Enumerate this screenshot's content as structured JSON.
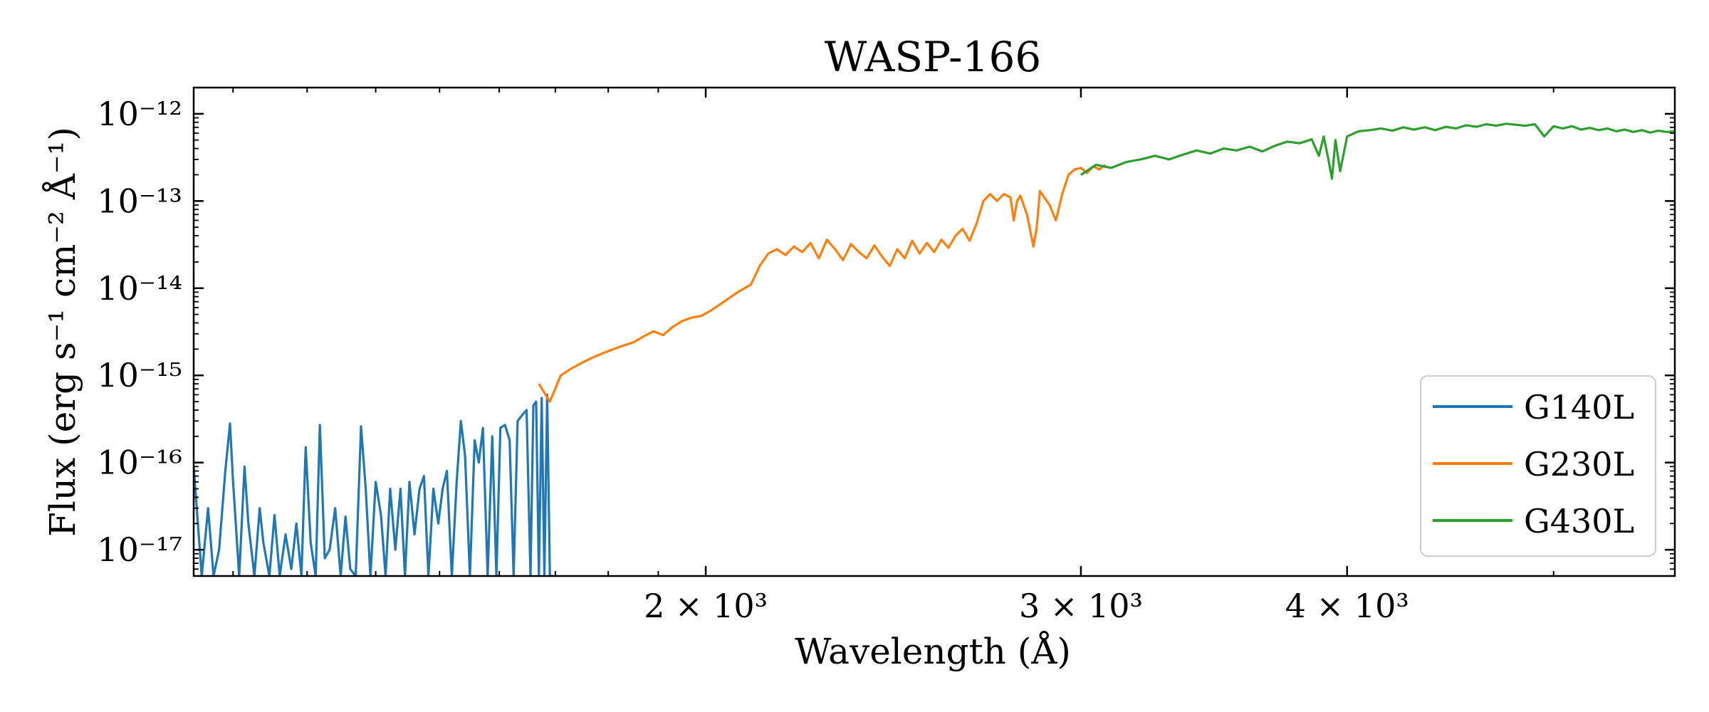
{
  "chart_data": {
    "type": "line",
    "title": "WASP-166",
    "xlabel": "Wavelength (Å)",
    "ylabel": "Flux (erg s⁻¹ cm⁻² Å⁻¹)",
    "xscale": "log",
    "yscale": "log",
    "xlim": [
      1150,
      5700
    ],
    "ylim": [
      5e-18,
      2e-12
    ],
    "grid": false,
    "legend_position": "lower-right",
    "x_ticks": [
      {
        "value": 2000,
        "label": "2 × 10³"
      },
      {
        "value": 3000,
        "label": "3 × 10³"
      },
      {
        "value": 4000,
        "label": "4 × 10³"
      }
    ],
    "y_ticks": [
      {
        "value": 1e-17,
        "label": "10⁻¹⁷"
      },
      {
        "value": 1e-16,
        "label": "10⁻¹⁶"
      },
      {
        "value": 1e-15,
        "label": "10⁻¹⁵"
      },
      {
        "value": 1e-14,
        "label": "10⁻¹⁴"
      },
      {
        "value": 1e-13,
        "label": "10⁻¹³"
      },
      {
        "value": 1e-12,
        "label": "10⁻¹²"
      }
    ],
    "series": [
      {
        "name": "G140L",
        "color": "#1f77b4",
        "x": [
          1150,
          1160,
          1168,
          1175,
          1182,
          1190,
          1196,
          1200,
          1208,
          1215,
          1220,
          1228,
          1235,
          1240,
          1248,
          1255,
          1262,
          1270,
          1278,
          1285,
          1292,
          1298,
          1305,
          1312,
          1318,
          1325,
          1332,
          1340,
          1348,
          1355,
          1362,
          1370,
          1378,
          1385,
          1392,
          1400,
          1408,
          1415,
          1422,
          1430,
          1438,
          1445,
          1452,
          1460,
          1468,
          1475,
          1482,
          1490,
          1498,
          1505,
          1512,
          1520,
          1528,
          1535,
          1542,
          1550,
          1558,
          1565,
          1572,
          1580,
          1588,
          1595,
          1602,
          1610,
          1618,
          1625,
          1632,
          1640,
          1648,
          1655,
          1660,
          1665,
          1670,
          1675,
          1680,
          1685,
          1690,
          1695
        ],
        "y": [
          9e-17,
          4e-18,
          3e-17,
          4e-18,
          1e-17,
          8e-17,
          2.8e-16,
          6e-17,
          4e-18,
          9e-17,
          2e-17,
          4e-18,
          3e-17,
          1.2e-17,
          4e-18,
          2.5e-17,
          4e-18,
          1.5e-17,
          6e-18,
          2e-17,
          4e-18,
          1.5e-16,
          1.2e-17,
          4e-18,
          2.7e-16,
          8e-18,
          1e-17,
          3e-17,
          4e-18,
          2.4e-17,
          6e-18,
          4e-18,
          2.6e-16,
          5e-17,
          4e-18,
          6e-17,
          2.5e-17,
          4e-18,
          5e-17,
          1e-17,
          5e-17,
          4e-18,
          6e-17,
          1.5e-17,
          5e-17,
          7e-17,
          4e-18,
          5e-17,
          2e-17,
          5e-17,
          8e-17,
          4e-18,
          6e-17,
          3e-16,
          1.2e-16,
          4e-18,
          1.8e-16,
          1e-16,
          2.5e-16,
          4e-18,
          2e-16,
          4e-18,
          2.5e-16,
          2.7e-16,
          1.8e-16,
          4e-18,
          3e-16,
          3.5e-16,
          4e-16,
          4e-18,
          4.5e-16,
          5e-16,
          4e-18,
          5.5e-16,
          4e-18,
          6e-16,
          4e-18,
          4e-18
        ]
      },
      {
        "name": "G230L",
        "color": "#ff7f0e",
        "x": [
          1670,
          1690,
          1710,
          1730,
          1750,
          1770,
          1790,
          1810,
          1830,
          1850,
          1870,
          1890,
          1910,
          1930,
          1950,
          1970,
          1990,
          2010,
          2040,
          2070,
          2100,
          2120,
          2140,
          2160,
          2180,
          2200,
          2220,
          2240,
          2260,
          2280,
          2300,
          2320,
          2340,
          2360,
          2380,
          2400,
          2420,
          2440,
          2460,
          2480,
          2500,
          2520,
          2540,
          2560,
          2580,
          2600,
          2620,
          2640,
          2660,
          2680,
          2700,
          2720,
          2740,
          2760,
          2780,
          2790,
          2800,
          2810,
          2830,
          2850,
          2860,
          2870,
          2880,
          2900,
          2920,
          2940,
          2960,
          2980,
          3000,
          3020,
          3040,
          3060,
          3080
        ],
        "y": [
          8e-16,
          5e-16,
          1e-15,
          1.2e-15,
          1.4e-15,
          1.6e-15,
          1.8e-15,
          2e-15,
          2.2e-15,
          2.4e-15,
          2.8e-15,
          3.2e-15,
          2.9e-15,
          3.6e-15,
          4.2e-15,
          4.6e-15,
          4.8e-15,
          5.5e-15,
          7e-15,
          9e-15,
          1.1e-14,
          1.8e-14,
          2.5e-14,
          2.8e-14,
          2.4e-14,
          3e-14,
          2.6e-14,
          3.3e-14,
          2.2e-14,
          3.6e-14,
          2.8e-14,
          2.1e-14,
          3.2e-14,
          2.6e-14,
          2.2e-14,
          3.1e-14,
          2.3e-14,
          1.8e-14,
          2.8e-14,
          2.2e-14,
          3.5e-14,
          2.5e-14,
          3.3e-14,
          2.6e-14,
          3.6e-14,
          2.9e-14,
          4e-14,
          4.8e-14,
          3.5e-14,
          5.5e-14,
          1e-13,
          1.2e-13,
          1e-13,
          1.2e-13,
          1.1e-13,
          6e-14,
          1e-13,
          1.15e-13,
          7e-14,
          3e-14,
          5e-14,
          1.3e-13,
          1.15e-13,
          9e-14,
          6e-14,
          1.2e-13,
          2e-13,
          2.3e-13,
          2.4e-13,
          2.1e-13,
          2.5e-13,
          2.3e-13,
          2.6e-13
        ],
        "__ranges": "dummy"
      },
      {
        "name": "G430L",
        "color": "#2ca02c",
        "x": [
          3000,
          3050,
          3100,
          3150,
          3200,
          3250,
          3300,
          3350,
          3400,
          3450,
          3500,
          3550,
          3600,
          3650,
          3700,
          3750,
          3800,
          3850,
          3880,
          3900,
          3920,
          3935,
          3950,
          3970,
          4000,
          4050,
          4100,
          4150,
          4200,
          4250,
          4300,
          4350,
          4400,
          4450,
          4500,
          4550,
          4600,
          4650,
          4700,
          4750,
          4800,
          4850,
          4900,
          4950,
          5000,
          5050,
          5100,
          5150,
          5200,
          5250,
          5300,
          5350,
          5400,
          5450,
          5500,
          5550,
          5600,
          5650,
          5700
        ],
        "y": [
          2e-13,
          2.6e-13,
          2.4e-13,
          2.8e-13,
          3e-13,
          3.3e-13,
          3e-13,
          3.4e-13,
          3.8e-13,
          3.5e-13,
          4e-13,
          3.8e-13,
          4.2e-13,
          3.7e-13,
          4.3e-13,
          4.8e-13,
          4.6e-13,
          5.1e-13,
          3.3e-13,
          5.5e-13,
          3e-13,
          1.8e-13,
          5e-13,
          2.2e-13,
          5.5e-13,
          6.3e-13,
          6.5e-13,
          6.8e-13,
          6.4e-13,
          7e-13,
          6.6e-13,
          7e-13,
          6.5e-13,
          7.1e-13,
          6.8e-13,
          7.4e-13,
          7.1e-13,
          7.6e-13,
          7.3e-13,
          7.7e-13,
          7.5e-13,
          7.3e-13,
          7.6e-13,
          5.5e-13,
          7.2e-13,
          6.8e-13,
          7.2e-13,
          6.6e-13,
          6.9e-13,
          6.5e-13,
          6.8e-13,
          6.3e-13,
          6.6e-13,
          6.2e-13,
          6.5e-13,
          6.1e-13,
          6.4e-13,
          6.2e-13,
          6.3e-13
        ]
      }
    ]
  }
}
